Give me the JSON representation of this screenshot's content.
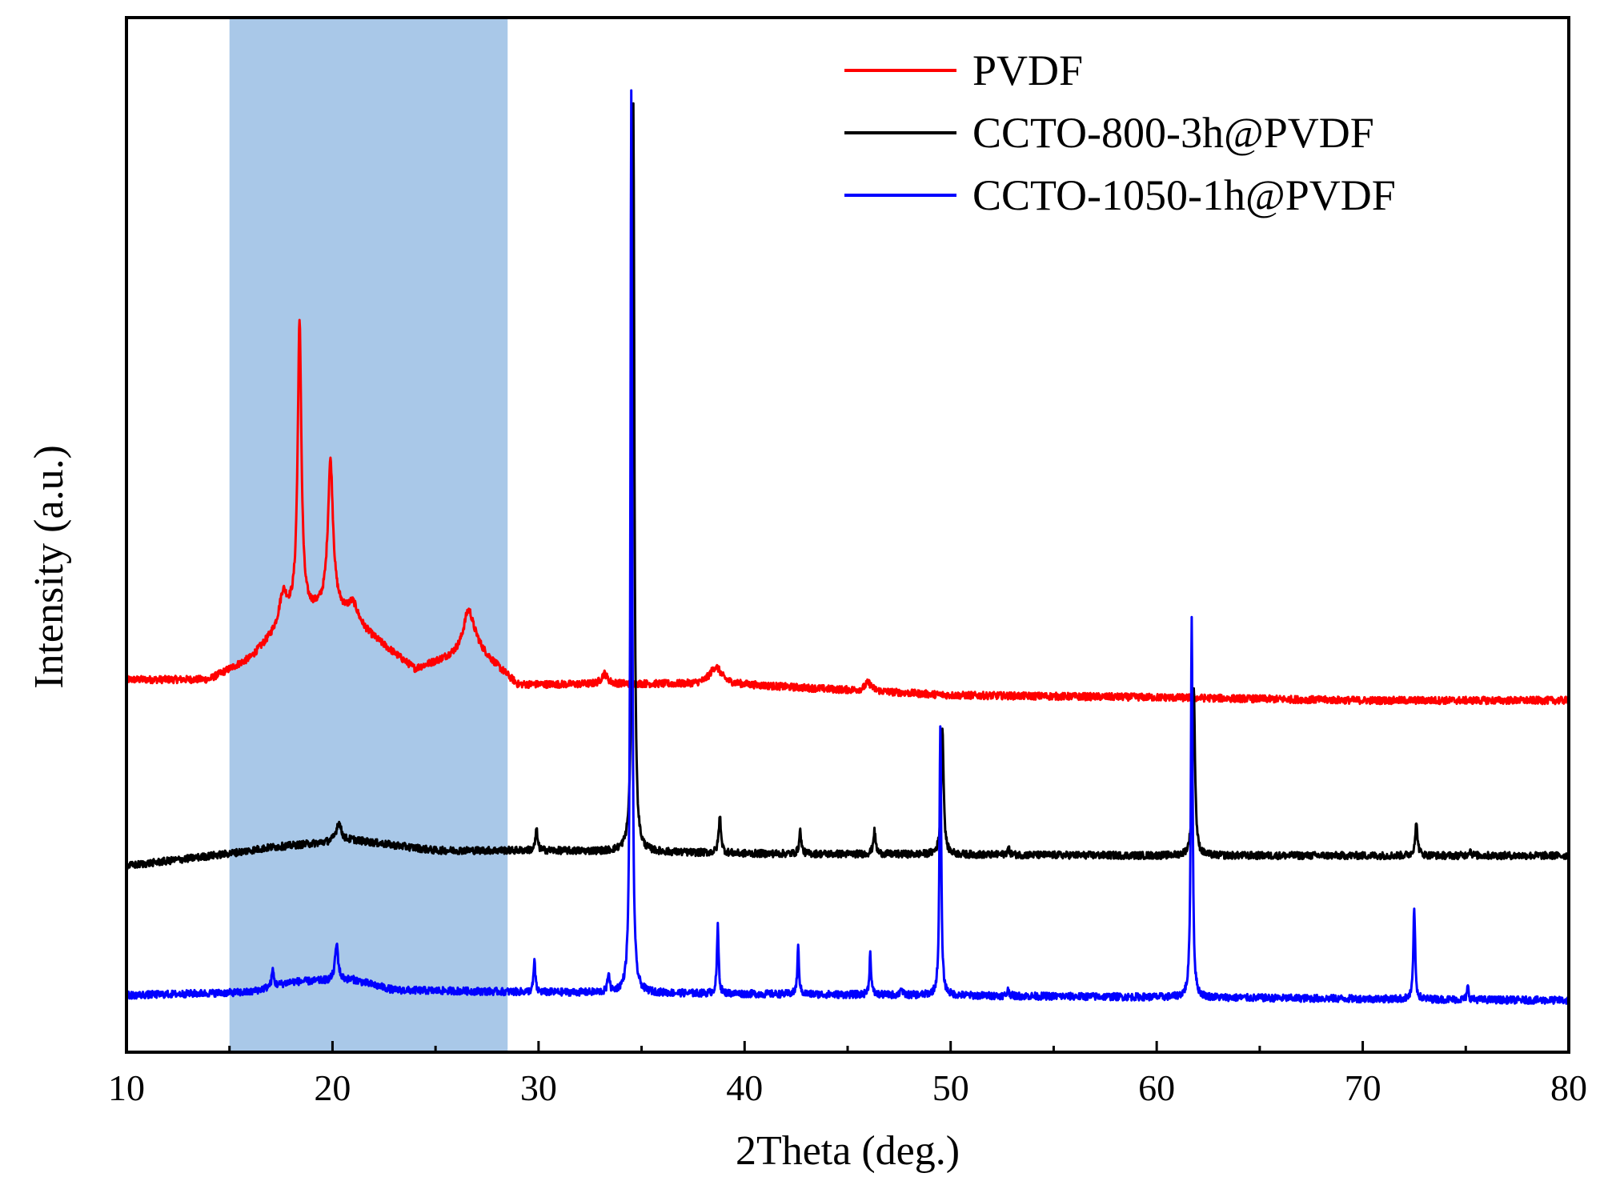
{
  "chart_data": {
    "type": "line",
    "title": "",
    "xlabel": "2Theta (deg.)",
    "ylabel": "Intensity (a.u.)",
    "xlim": [
      10,
      80
    ],
    "ylim": [
      0,
      100
    ],
    "x_ticks": [
      10,
      20,
      30,
      40,
      50,
      60,
      70,
      80
    ],
    "x_tick_labels": [
      "10",
      "20",
      "30",
      "40",
      "50",
      "60",
      "70",
      "80"
    ],
    "y_ticks_visible": false,
    "grid": false,
    "legend_position": "top-right",
    "highlight_region": {
      "x_start": 15,
      "x_end": 28.5,
      "color": "#a9c8e8"
    },
    "series": [
      {
        "name": "PVDF",
        "color": "#ff0000",
        "baseline": [
          [
            10,
            36
          ],
          [
            14,
            36
          ],
          [
            16,
            38
          ],
          [
            18,
            42
          ],
          [
            20,
            43
          ],
          [
            24,
            37
          ],
          [
            27,
            39
          ],
          [
            29,
            35.5
          ],
          [
            35,
            35.6
          ],
          [
            40,
            35.5
          ],
          [
            45,
            35
          ],
          [
            50,
            34.5
          ],
          [
            60,
            34.3
          ],
          [
            70,
            34
          ],
          [
            80,
            34
          ]
        ],
        "peaks": [
          {
            "x": 17.6,
            "h": 3,
            "w": 0.45
          },
          {
            "x": 18.4,
            "h": 28,
            "w": 0.22
          },
          {
            "x": 19.9,
            "h": 14,
            "w": 0.3
          },
          {
            "x": 21.0,
            "h": 1.8,
            "w": 0.6
          },
          {
            "x": 26.6,
            "h": 4,
            "w": 0.6
          },
          {
            "x": 33.2,
            "h": 1,
            "w": 0.35
          },
          {
            "x": 38.6,
            "h": 1.7,
            "w": 0.7
          },
          {
            "x": 46.0,
            "h": 0.8,
            "w": 0.4
          }
        ],
        "noise": 0.35
      },
      {
        "name": "CCTO-800-3h@PVDF",
        "color": "#000000",
        "baseline": [
          [
            10,
            18
          ],
          [
            15,
            19.2
          ],
          [
            17,
            19.8
          ],
          [
            21,
            20.5
          ],
          [
            25,
            19.5
          ],
          [
            30,
            19.5
          ],
          [
            40,
            19.2
          ],
          [
            60,
            19
          ],
          [
            80,
            19
          ]
        ],
        "peaks": [
          {
            "x": 20.3,
            "h": 1.8,
            "w": 0.3
          },
          {
            "x": 29.9,
            "h": 2,
            "w": 0.12
          },
          {
            "x": 34.6,
            "h": 72,
            "w": 0.12
          },
          {
            "x": 38.8,
            "h": 3.5,
            "w": 0.14
          },
          {
            "x": 42.7,
            "h": 2.2,
            "w": 0.12
          },
          {
            "x": 46.3,
            "h": 2.2,
            "w": 0.14
          },
          {
            "x": 49.6,
            "h": 12.5,
            "w": 0.14
          },
          {
            "x": 52.8,
            "h": 0.6,
            "w": 0.15
          },
          {
            "x": 61.8,
            "h": 16.5,
            "w": 0.14
          },
          {
            "x": 72.6,
            "h": 3,
            "w": 0.15
          },
          {
            "x": 75.2,
            "h": 0.5,
            "w": 0.15
          }
        ],
        "noise": 0.35
      },
      {
        "name": "CCTO-1050-1h@PVDF",
        "color": "#0000ff",
        "baseline": [
          [
            10,
            5.5
          ],
          [
            16,
            5.8
          ],
          [
            18,
            6.8
          ],
          [
            21,
            7
          ],
          [
            23,
            6
          ],
          [
            30,
            5.8
          ],
          [
            80,
            5
          ]
        ],
        "peaks": [
          {
            "x": 17.1,
            "h": 1.6,
            "w": 0.12
          },
          {
            "x": 20.2,
            "h": 3.5,
            "w": 0.18
          },
          {
            "x": 29.8,
            "h": 3,
            "w": 0.1
          },
          {
            "x": 33.4,
            "h": 2,
            "w": 0.1
          },
          {
            "x": 34.5,
            "h": 87,
            "w": 0.1
          },
          {
            "x": 38.7,
            "h": 6.5,
            "w": 0.1
          },
          {
            "x": 42.6,
            "h": 4.5,
            "w": 0.1
          },
          {
            "x": 46.1,
            "h": 4,
            "w": 0.1
          },
          {
            "x": 47.6,
            "h": 0.8,
            "w": 0.1
          },
          {
            "x": 49.5,
            "h": 26,
            "w": 0.1
          },
          {
            "x": 52.8,
            "h": 0.6,
            "w": 0.12
          },
          {
            "x": 61.7,
            "h": 37,
            "w": 0.1
          },
          {
            "x": 72.5,
            "h": 9,
            "w": 0.1
          },
          {
            "x": 75.1,
            "h": 1.2,
            "w": 0.1
          }
        ],
        "noise": 0.35
      }
    ]
  }
}
